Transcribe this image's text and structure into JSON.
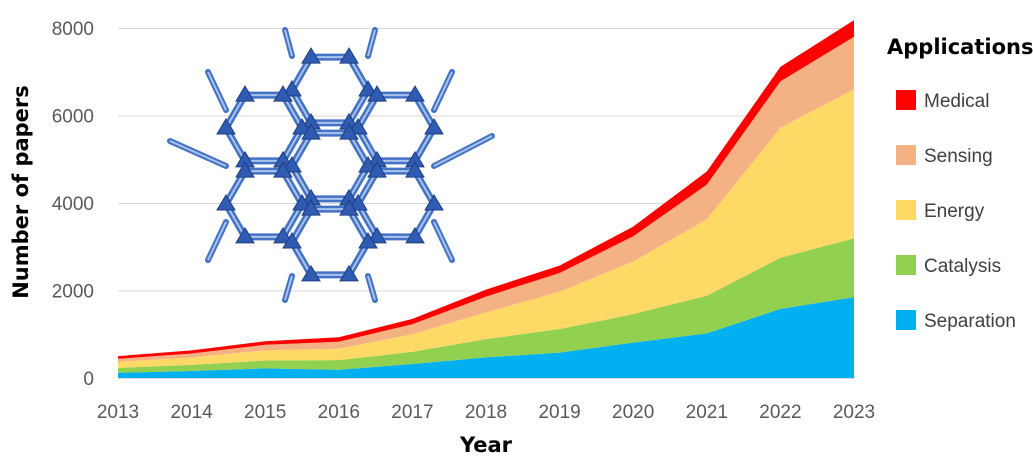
{
  "chart_data": {
    "type": "area",
    "stacked": true,
    "title": "",
    "xlabel": "Year",
    "ylabel": "Number of papers",
    "x": [
      "2013",
      "2014",
      "2015",
      "2016",
      "2017",
      "2018",
      "2019",
      "2020",
      "2021",
      "2022",
      "2023"
    ],
    "ylim": [
      0,
      8000
    ],
    "yticks": [
      "0",
      "2000",
      "4000",
      "6000",
      "8000"
    ],
    "grid": true,
    "legend_title": "Applications",
    "legend_position": "right",
    "series": [
      {
        "name": "Separation",
        "color": "#00B0F0",
        "values": [
          120,
          160,
          220,
          190,
          320,
          470,
          580,
          810,
          1020,
          1580,
          1850
        ]
      },
      {
        "name": "Catalysis",
        "color": "#92D050",
        "values": [
          110,
          140,
          180,
          220,
          280,
          420,
          540,
          650,
          860,
          1170,
          1340
        ]
      },
      {
        "name": "Energy",
        "color": "#FFD966",
        "values": [
          140,
          170,
          230,
          260,
          400,
          610,
          850,
          1200,
          1750,
          2970,
          3410
        ]
      },
      {
        "name": "Sensing",
        "color": "#F4B183",
        "values": [
          70,
          90,
          130,
          160,
          230,
          360,
          430,
          580,
          790,
          1060,
          1200
        ]
      },
      {
        "name": "Medical",
        "color": "#FF0000",
        "values": [
          60,
          70,
          80,
          100,
          120,
          160,
          170,
          220,
          300,
          330,
          380
        ]
      }
    ],
    "inset_illustration": "hexagonal-framework-structure"
  }
}
